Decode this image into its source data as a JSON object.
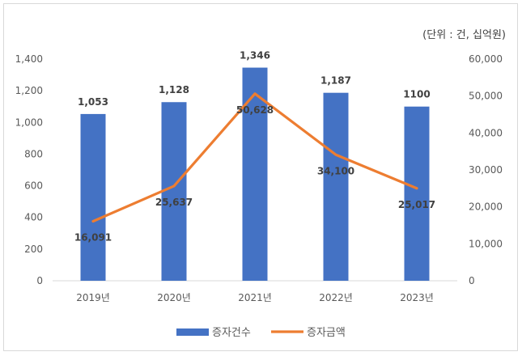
{
  "chart_data": {
    "type": "bar+line",
    "unit_note": "(단위 : 건, 십억원)",
    "categories": [
      "2019년",
      "2020년",
      "2021년",
      "2022년",
      "2023년"
    ],
    "series": [
      {
        "name": "증자건수",
        "type": "bar",
        "axis": "left",
        "color": "#4472C4",
        "values": [
          1053,
          1128,
          1346,
          1187,
          1100
        ],
        "labels": [
          "1,053",
          "1,128",
          "1,346",
          "1,187",
          "1100"
        ]
      },
      {
        "name": "증자금액",
        "type": "line",
        "axis": "right",
        "color": "#ED7D31",
        "values": [
          16091,
          25637,
          50628,
          34100,
          25017
        ],
        "labels": [
          "16,091",
          "25,637",
          "50,628",
          "34,100",
          "25,017"
        ]
      }
    ],
    "y_left": {
      "min": 0,
      "max": 1400,
      "step": 200,
      "tick_labels": [
        "0",
        "200",
        "400",
        "600",
        "800",
        "1,000",
        "1,200",
        "1,400"
      ]
    },
    "y_right": {
      "min": 0,
      "max": 60000,
      "step": 10000,
      "tick_labels": [
        "0",
        "10,000",
        "20,000",
        "30,000",
        "40,000",
        "50,000",
        "60,000"
      ]
    },
    "grid": false,
    "legend_position": "bottom"
  }
}
